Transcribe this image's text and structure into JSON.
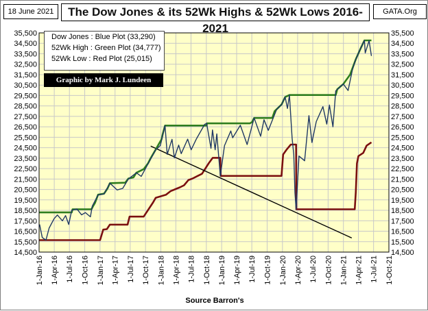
{
  "header": {
    "date": "18 June 2021",
    "title": "The Dow Jones & its 52Wk Highs & 52Wk Lows 2016-2021",
    "source": "GATA.Org"
  },
  "legend": {
    "line1": "Dow Jones : Blue Plot     (33,290)",
    "line2": "52Wk  High : Green Plot (34,777)",
    "line3": "52Wk  Low   : Red Plot    (25,015)"
  },
  "credit": "Graphic by Mark J. Lundeen",
  "xlabel": "Source Barron's",
  "colors": {
    "plot_bg": "#ffffc8",
    "dow": "#1f3864",
    "high": "#2e7d1e",
    "low": "#7b1010",
    "trend": "#000000"
  },
  "chart_data": {
    "type": "line",
    "ylim": [
      14500,
      35500
    ],
    "y_ticks": [
      "14,500",
      "15,500",
      "16,500",
      "17,500",
      "18,500",
      "19,500",
      "20,500",
      "21,500",
      "22,500",
      "23,500",
      "24,500",
      "25,500",
      "26,500",
      "27,500",
      "28,500",
      "29,500",
      "30,500",
      "31,500",
      "32,500",
      "33,500",
      "34,500",
      "35,500"
    ],
    "x_ticks": [
      "1-Jan-16",
      "1-Apr-16",
      "1-Jul-16",
      "1-Oct-16",
      "1-Jan-17",
      "1-Apr-17",
      "1-Jul-17",
      "1-Oct-17",
      "1-Jan-18",
      "1-Apr-18",
      "1-Jul-18",
      "1-Oct-18",
      "1-Jan-19",
      "1-Apr-19",
      "1-Jul-19",
      "1-Oct-19",
      "1-Jan-20",
      "1-Apr-20",
      "1-Jul-20",
      "1-Oct-20",
      "1-Jan-21",
      "1-Apr-21",
      "1-Jul-21",
      "1-Oct-21"
    ],
    "xlim": [
      "2016-01-01",
      "2021-10-01"
    ],
    "grid": true,
    "series": [
      {
        "key": "dow",
        "points": [
          [
            "2016-01-04",
            17150
          ],
          [
            "2016-01-20",
            15900
          ],
          [
            "2016-02-11",
            15650
          ],
          [
            "2016-03-01",
            16800
          ],
          [
            "2016-03-31",
            17700
          ],
          [
            "2016-04-20",
            18050
          ],
          [
            "2016-05-20",
            17500
          ],
          [
            "2016-06-08",
            18000
          ],
          [
            "2016-06-27",
            17150
          ],
          [
            "2016-07-15",
            18500
          ],
          [
            "2016-08-15",
            18630
          ],
          [
            "2016-09-12",
            18070
          ],
          [
            "2016-10-05",
            18280
          ],
          [
            "2016-11-04",
            17880
          ],
          [
            "2016-11-15",
            18900
          ],
          [
            "2016-12-20",
            19970
          ],
          [
            "2017-01-25",
            20070
          ],
          [
            "2017-03-01",
            21100
          ],
          [
            "2017-04-13",
            20450
          ],
          [
            "2017-05-17",
            20600
          ],
          [
            "2017-06-20",
            21500
          ],
          [
            "2017-08-07",
            22100
          ],
          [
            "2017-09-05",
            21750
          ],
          [
            "2017-10-16",
            22950
          ],
          [
            "2017-11-30",
            24270
          ],
          [
            "2017-12-29",
            24720
          ],
          [
            "2018-01-26",
            26620
          ],
          [
            "2018-02-08",
            23860
          ],
          [
            "2018-03-09",
            25300
          ],
          [
            "2018-03-23",
            23530
          ],
          [
            "2018-04-18",
            24750
          ],
          [
            "2018-05-03",
            23930
          ],
          [
            "2018-06-11",
            25320
          ],
          [
            "2018-07-02",
            24300
          ],
          [
            "2018-08-01",
            25300
          ],
          [
            "2018-09-21",
            26740
          ],
          [
            "2018-10-03",
            26830
          ],
          [
            "2018-10-29",
            24440
          ],
          [
            "2018-11-07",
            26200
          ],
          [
            "2018-11-23",
            24300
          ],
          [
            "2018-12-03",
            25830
          ],
          [
            "2018-12-24",
            21800
          ],
          [
            "2019-01-18",
            24700
          ],
          [
            "2019-02-25",
            26100
          ],
          [
            "2019-03-08",
            25450
          ],
          [
            "2019-04-23",
            26650
          ],
          [
            "2019-06-03",
            24800
          ],
          [
            "2019-07-15",
            27350
          ],
          [
            "2019-08-23",
            25600
          ],
          [
            "2019-09-12",
            27180
          ],
          [
            "2019-10-08",
            26160
          ],
          [
            "2019-11-27",
            28160
          ],
          [
            "2019-12-27",
            28650
          ],
          [
            "2020-01-17",
            29350
          ],
          [
            "2020-01-31",
            28260
          ],
          [
            "2020-02-12",
            29550
          ],
          [
            "2020-02-28",
            25400
          ],
          [
            "2020-03-09",
            23850
          ],
          [
            "2020-03-16",
            20190
          ],
          [
            "2020-03-23",
            18600
          ],
          [
            "2020-04-09",
            23700
          ],
          [
            "2020-05-13",
            23250
          ],
          [
            "2020-06-08",
            27570
          ],
          [
            "2020-06-26",
            25000
          ],
          [
            "2020-07-22",
            27000
          ],
          [
            "2020-08-31",
            28430
          ],
          [
            "2020-09-23",
            26760
          ],
          [
            "2020-10-09",
            28590
          ],
          [
            "2020-10-30",
            26500
          ],
          [
            "2020-11-16",
            29950
          ],
          [
            "2020-12-31",
            30600
          ],
          [
            "2021-01-29",
            29980
          ],
          [
            "2021-02-24",
            31960
          ],
          [
            "2021-03-17",
            33000
          ],
          [
            "2021-04-15",
            34040
          ],
          [
            "2021-05-07",
            34780
          ],
          [
            "2021-05-12",
            33580
          ],
          [
            "2021-06-04",
            34750
          ],
          [
            "2021-06-18",
            33290
          ]
        ]
      },
      {
        "key": "high",
        "points": [
          [
            "2016-01-01",
            18300
          ],
          [
            "2016-07-15",
            18300
          ],
          [
            "2016-07-20",
            18600
          ],
          [
            "2016-11-10",
            18600
          ],
          [
            "2016-11-20",
            18900
          ],
          [
            "2016-12-01",
            19200
          ],
          [
            "2016-12-20",
            20000
          ],
          [
            "2017-01-25",
            20100
          ],
          [
            "2017-02-15",
            20600
          ],
          [
            "2017-03-01",
            21100
          ],
          [
            "2017-06-01",
            21150
          ],
          [
            "2017-06-20",
            21550
          ],
          [
            "2017-07-20",
            21650
          ],
          [
            "2017-08-07",
            22100
          ],
          [
            "2017-09-20",
            22450
          ],
          [
            "2017-10-16",
            23000
          ],
          [
            "2017-11-01",
            23500
          ],
          [
            "2017-11-30",
            24300
          ],
          [
            "2017-12-18",
            24800
          ],
          [
            "2018-01-05",
            25300
          ],
          [
            "2018-01-12",
            25800
          ],
          [
            "2018-01-26",
            26620
          ],
          [
            "2018-10-03",
            26620
          ],
          [
            "2018-10-04",
            26830
          ],
          [
            "2019-06-20",
            26830
          ],
          [
            "2019-07-03",
            26970
          ],
          [
            "2019-07-15",
            27350
          ],
          [
            "2019-11-01",
            27350
          ],
          [
            "2019-11-15",
            28000
          ],
          [
            "2019-12-27",
            28650
          ],
          [
            "2020-01-17",
            29350
          ],
          [
            "2020-02-12",
            29550
          ],
          [
            "2020-11-16",
            29550
          ],
          [
            "2020-11-25",
            30100
          ],
          [
            "2020-12-31",
            30600
          ],
          [
            "2021-02-10",
            31500
          ],
          [
            "2021-03-17",
            33000
          ],
          [
            "2021-04-15",
            34040
          ],
          [
            "2021-05-07",
            34780
          ],
          [
            "2021-06-18",
            34780
          ]
        ]
      },
      {
        "key": "low",
        "points": [
          [
            "2016-01-01",
            15650
          ],
          [
            "2017-01-01",
            15650
          ],
          [
            "2017-01-20",
            16650
          ],
          [
            "2017-02-11",
            16700
          ],
          [
            "2017-03-01",
            17130
          ],
          [
            "2017-06-15",
            17130
          ],
          [
            "2017-06-27",
            17900
          ],
          [
            "2017-09-20",
            17900
          ],
          [
            "2017-11-15",
            19250
          ],
          [
            "2017-12-01",
            19700
          ],
          [
            "2018-02-01",
            20000
          ],
          [
            "2018-03-01",
            20350
          ],
          [
            "2018-04-25",
            20700
          ],
          [
            "2018-05-20",
            20900
          ],
          [
            "2018-06-15",
            21400
          ],
          [
            "2018-07-10",
            21550
          ],
          [
            "2018-08-10",
            21800
          ],
          [
            "2018-09-05",
            22000
          ],
          [
            "2018-10-15",
            23000
          ],
          [
            "2018-11-08",
            23530
          ],
          [
            "2018-12-24",
            23530
          ],
          [
            "2018-12-26",
            21800
          ],
          [
            "2019-12-26",
            21800
          ],
          [
            "2020-01-05",
            23850
          ],
          [
            "2020-01-25",
            24300
          ],
          [
            "2020-02-20",
            24800
          ],
          [
            "2020-03-23",
            24800
          ],
          [
            "2020-03-24",
            18600
          ],
          [
            "2021-03-10",
            18600
          ],
          [
            "2021-03-16",
            20200
          ],
          [
            "2021-03-23",
            23000
          ],
          [
            "2021-04-01",
            23700
          ],
          [
            "2021-04-30",
            24000
          ],
          [
            "2021-05-20",
            24700
          ],
          [
            "2021-06-18",
            25015
          ]
        ]
      },
      {
        "key": "trend",
        "points": [
          [
            "2017-11-01",
            24650
          ],
          [
            "2021-02-20",
            15850
          ]
        ]
      }
    ]
  }
}
